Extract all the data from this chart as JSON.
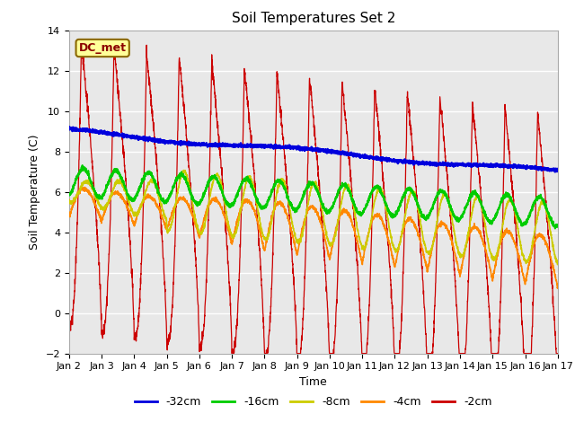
{
  "title": "Soil Temperatures Set 2",
  "xlabel": "Time",
  "ylabel": "Soil Temperature (C)",
  "ylim": [
    -2,
    14
  ],
  "yticks": [
    -2,
    0,
    2,
    4,
    6,
    8,
    10,
    12,
    14
  ],
  "xlim": [
    0,
    15
  ],
  "xtick_labels": [
    "Jan 2",
    "Jan 3",
    "Jan 4",
    "Jan 5",
    "Jan 6",
    "Jan 7",
    "Jan 8",
    "Jan 9",
    "Jan 10",
    "Jan 11",
    "Jan 12",
    "Jan 13",
    "Jan 14",
    "Jan 15",
    "Jan 16",
    "Jan 17"
  ],
  "legend_labels": [
    "-32cm",
    "-16cm",
    "-8cm",
    "-4cm",
    "-2cm"
  ],
  "annotation_text": "DC_met",
  "bg_color": "#e8e8e8",
  "title_fontsize": 11,
  "label_fontsize": 9,
  "tick_fontsize": 8
}
